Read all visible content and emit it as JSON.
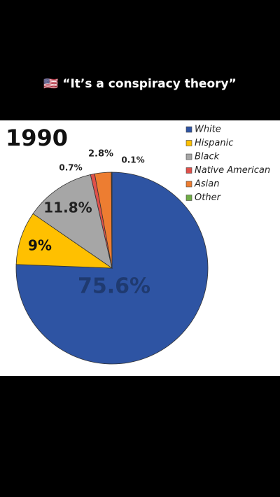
{
  "caption": "🇺🇸 “It’s a conspiracy theory”",
  "chart_data": {
    "type": "pie",
    "title": "1990",
    "categories": [
      "White",
      "Hispanic",
      "Black",
      "Native American",
      "Asian",
      "Other"
    ],
    "values": [
      75.6,
      9,
      11.8,
      0.7,
      2.8,
      0.1
    ],
    "value_labels": [
      "75.6%",
      "9%",
      "11.8%",
      "0.7%",
      "2.8%",
      "0.1%"
    ],
    "colors": [
      "#2e54a3",
      "#ffc000",
      "#a6a6a6",
      "#e0504a",
      "#ed7d31",
      "#70ad47"
    ]
  }
}
